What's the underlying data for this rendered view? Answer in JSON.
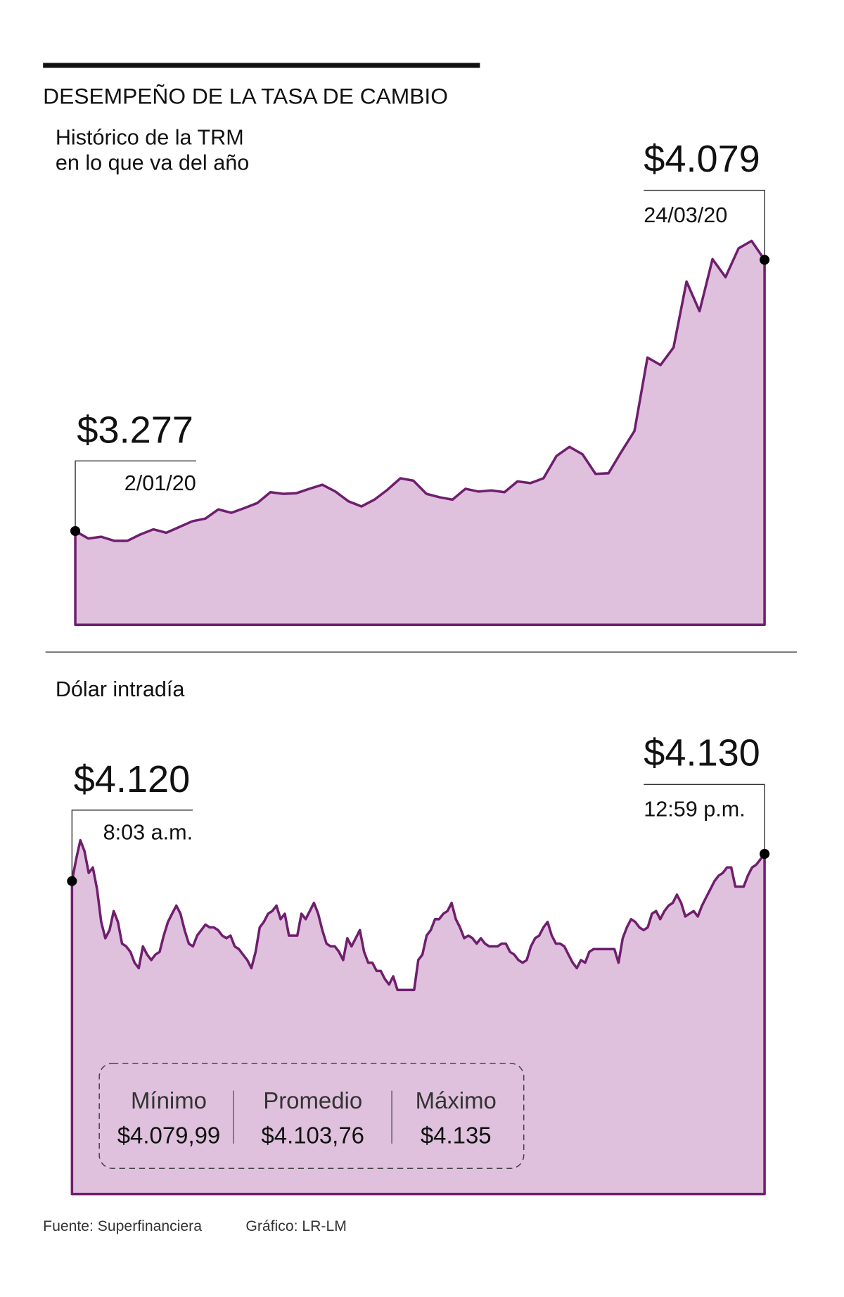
{
  "title": "DESEMPEÑO DE LA TASA DE CAMBIO",
  "chart_data": [
    {
      "type": "area",
      "subtitle": [
        "Histórico de la TRM",
        "en lo que va del año"
      ],
      "color": "#6f1f6e",
      "fill": "#dfc1dd",
      "ylim": [
        3000,
        4150
      ],
      "x": [
        "2/01/20",
        null,
        null,
        null,
        null,
        null,
        null,
        null,
        null,
        null,
        null,
        null,
        null,
        null,
        null,
        null,
        null,
        null,
        null,
        null,
        null,
        null,
        null,
        null,
        null,
        null,
        null,
        null,
        null,
        null,
        null,
        null,
        null,
        null,
        null,
        null,
        null,
        null,
        null,
        null,
        null,
        null,
        null,
        null,
        null,
        null,
        null,
        null,
        null,
        null,
        null,
        null,
        null,
        "24/03/20"
      ],
      "values": [
        3277,
        3255,
        3260,
        3248,
        3248,
        3267,
        3282,
        3272,
        3289,
        3306,
        3314,
        3341,
        3331,
        3345,
        3360,
        3392,
        3387,
        3389,
        3402,
        3414,
        3394,
        3365,
        3350,
        3370,
        3399,
        3433,
        3426,
        3387,
        3377,
        3370,
        3402,
        3394,
        3397,
        3392,
        3424,
        3419,
        3433,
        3499,
        3526,
        3504,
        3446,
        3448,
        3512,
        3573,
        3790,
        3768,
        3820,
        4015,
        3927,
        4081,
        4028,
        4113,
        4135,
        4079
      ],
      "value_labels": [
        "$3.277",
        null,
        null,
        null,
        null,
        null,
        null,
        null,
        null,
        null,
        null,
        null,
        null,
        null,
        null,
        null,
        null,
        null,
        null,
        null,
        null,
        null,
        null,
        null,
        null,
        null,
        null,
        null,
        null,
        null,
        null,
        null,
        null,
        null,
        null,
        null,
        null,
        null,
        null,
        null,
        null,
        null,
        null,
        null,
        null,
        null,
        null,
        null,
        null,
        null,
        null,
        null,
        null,
        "$4.079"
      ]
    },
    {
      "type": "area",
      "subtitle": [
        "Dólar intradía"
      ],
      "color": "#6f1f6e",
      "fill": "#dfc1dd",
      "ylim": [
        4005,
        4140
      ],
      "x": [
        "8:03 a.m.",
        null,
        null,
        null,
        null,
        null,
        null,
        null,
        null,
        null,
        null,
        null,
        null,
        null,
        null,
        null,
        null,
        null,
        null,
        null,
        null,
        null,
        null,
        null,
        null,
        null,
        null,
        null,
        null,
        null,
        null,
        null,
        null,
        null,
        null,
        null,
        null,
        null,
        null,
        null,
        null,
        null,
        null,
        null,
        null,
        null,
        null,
        null,
        null,
        null,
        null,
        null,
        null,
        null,
        null,
        null,
        null,
        null,
        null,
        null,
        null,
        null,
        null,
        null,
        null,
        null,
        null,
        null,
        null,
        null,
        null,
        null,
        null,
        null,
        null,
        null,
        null,
        null,
        null,
        null,
        null,
        null,
        null,
        null,
        null,
        null,
        null,
        null,
        null,
        null,
        null,
        null,
        null,
        null,
        null,
        null,
        null,
        null,
        null,
        null,
        null,
        null,
        null,
        null,
        null,
        null,
        null,
        null,
        null,
        null,
        null,
        null,
        null,
        null,
        null,
        null,
        null,
        null,
        null,
        null,
        null,
        null,
        null,
        null,
        null,
        null,
        null,
        null,
        null,
        null,
        null,
        null,
        null,
        null,
        null,
        null,
        null,
        null,
        null,
        null,
        null,
        null,
        null,
        null,
        null,
        null,
        null,
        null,
        null,
        null,
        null,
        null,
        null,
        null,
        null,
        null,
        null,
        null,
        null,
        null,
        null,
        null,
        null,
        null,
        null,
        null,
        "12:59 p.m."
      ],
      "values": [
        4120,
        4128,
        4135,
        4131,
        4123,
        4125,
        4117,
        4105,
        4099,
        4102,
        4109,
        4105,
        4097,
        4096,
        4094,
        4090,
        4088,
        4096,
        4093,
        4091,
        4093,
        4094,
        4100,
        4105,
        4108,
        4111,
        4108,
        4102,
        4097,
        4096,
        4100,
        4102,
        4104,
        4103,
        4103,
        4102,
        4100,
        4099,
        4100,
        4096,
        4095,
        4093,
        4091,
        4088,
        4094,
        4103,
        4105,
        4108,
        4109,
        4111,
        4106,
        4108,
        4100,
        4100,
        4100,
        4108,
        4106,
        4109,
        4112,
        4108,
        4102,
        4097,
        4096,
        4096,
        4094,
        4091,
        4099,
        4096,
        4099,
        4102,
        4094,
        4090,
        4090,
        4087,
        4087,
        4084,
        4082,
        4085,
        4080,
        4080,
        4080,
        4080,
        4080,
        4091,
        4093,
        4100,
        4102,
        4106,
        4106,
        4108,
        4109,
        4112,
        4106,
        4103,
        4099,
        4100,
        4099,
        4097,
        4099,
        4097,
        4096,
        4096,
        4096,
        4097,
        4097,
        4094,
        4093,
        4091,
        4090,
        4091,
        4096,
        4099,
        4100,
        4103,
        4105,
        4100,
        4097,
        4097,
        4096,
        4093,
        4090,
        4088,
        4091,
        4090,
        4094,
        4095,
        4095,
        4095,
        4095,
        4095,
        4095,
        4090,
        4099,
        4103,
        4106,
        4105,
        4103,
        4102,
        4103,
        4108,
        4109,
        4106,
        4109,
        4111,
        4112,
        4115,
        4112,
        4107,
        4108,
        4109,
        4107,
        4111,
        4114,
        4117,
        4120,
        4122,
        4123,
        4125,
        4125,
        4118,
        4118,
        4118,
        4122,
        4125,
        4126,
        4128,
        4130
      ],
      "value_labels": [
        "$4.120",
        null,
        null,
        null,
        null,
        null,
        null,
        null,
        null,
        null,
        null,
        null,
        null,
        null,
        null,
        null,
        null,
        null,
        null,
        null,
        null,
        null,
        null,
        null,
        null,
        null,
        null,
        null,
        null,
        null,
        null,
        null,
        null,
        null,
        null,
        null,
        null,
        null,
        null,
        null,
        null,
        null,
        null,
        null,
        null,
        null,
        null,
        null,
        null,
        null,
        null,
        null,
        null,
        null,
        null,
        null,
        null,
        null,
        null,
        null,
        null,
        null,
        null,
        null,
        null,
        null,
        null,
        null,
        null,
        null,
        null,
        null,
        null,
        null,
        null,
        null,
        null,
        null,
        null,
        null,
        null,
        null,
        null,
        null,
        null,
        null,
        null,
        null,
        null,
        null,
        null,
        null,
        null,
        null,
        null,
        null,
        null,
        null,
        null,
        null,
        null,
        null,
        null,
        null,
        null,
        null,
        null,
        null,
        null,
        null,
        null,
        null,
        null,
        null,
        null,
        null,
        null,
        null,
        null,
        null,
        null,
        null,
        null,
        null,
        null,
        null,
        null,
        null,
        null,
        null,
        null,
        null,
        null,
        null,
        null,
        null,
        null,
        null,
        null,
        null,
        null,
        null,
        null,
        null,
        null,
        null,
        null,
        null,
        null,
        null,
        null,
        null,
        null,
        null,
        null,
        null,
        null,
        null,
        null,
        null,
        null,
        null,
        null,
        null,
        null,
        null,
        "$4.130"
      ],
      "summary": [
        {
          "label": "Mínimo",
          "value": "$4.079,99"
        },
        {
          "label": "Promedio",
          "value": "$4.103,76"
        },
        {
          "label": "Máximo",
          "value": "$4.135"
        }
      ]
    }
  ],
  "footer": {
    "source": "Fuente: Superfinanciera",
    "credit": "Gráfico: LR-LM"
  }
}
